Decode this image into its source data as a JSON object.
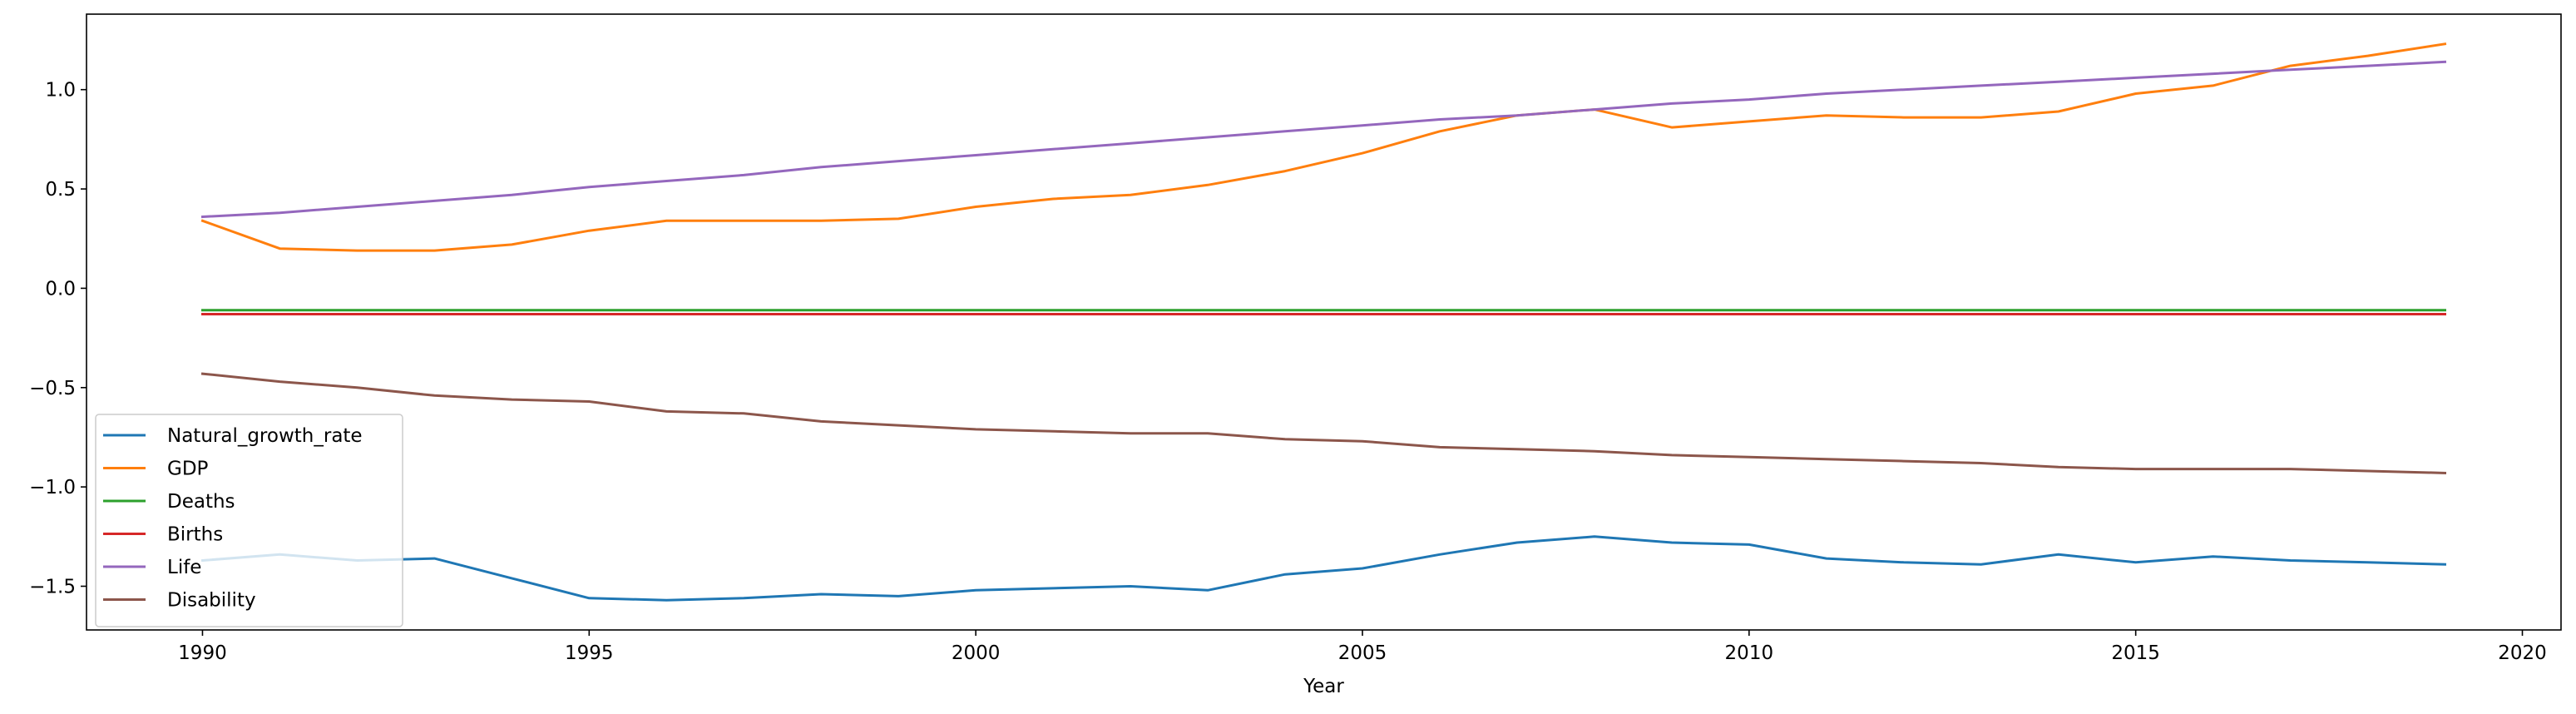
{
  "chart_data": {
    "type": "line",
    "title": "",
    "xlabel": "Year",
    "ylabel": "",
    "xlim": [
      1988.5,
      2020.5
    ],
    "ylim": [
      -1.72,
      1.38
    ],
    "xticks": [
      1990,
      1995,
      2000,
      2005,
      2010,
      2015,
      2020
    ],
    "yticks": [
      -1.5,
      -1.0,
      -0.5,
      0.0,
      0.5,
      1.0
    ],
    "ytick_labels": [
      "−1.5",
      "−1.0",
      "−0.5",
      "0.0",
      "0.5",
      "1.0"
    ],
    "grid": false,
    "legend_position": "lower-left",
    "x": [
      1990,
      1991,
      1992,
      1993,
      1994,
      1995,
      1996,
      1997,
      1998,
      1999,
      2000,
      2001,
      2002,
      2003,
      2004,
      2005,
      2006,
      2007,
      2008,
      2009,
      2010,
      2011,
      2012,
      2013,
      2014,
      2015,
      2016,
      2017,
      2018,
      2019
    ],
    "series": [
      {
        "name": "Natural_growth_rate",
        "color": "#1f77b4",
        "values": [
          -1.37,
          -1.34,
          -1.37,
          -1.36,
          -1.46,
          -1.56,
          -1.57,
          -1.56,
          -1.54,
          -1.55,
          -1.52,
          -1.51,
          -1.5,
          -1.52,
          -1.44,
          -1.41,
          -1.34,
          -1.28,
          -1.25,
          -1.28,
          -1.29,
          -1.36,
          -1.38,
          -1.39,
          -1.34,
          -1.38,
          -1.35,
          -1.37,
          -1.38,
          -1.39
        ]
      },
      {
        "name": "GDP",
        "color": "#ff7f0e",
        "values": [
          0.34,
          0.2,
          0.19,
          0.19,
          0.22,
          0.29,
          0.34,
          0.34,
          0.34,
          0.35,
          0.41,
          0.45,
          0.47,
          0.52,
          0.59,
          0.68,
          0.79,
          0.87,
          0.9,
          0.81,
          0.84,
          0.87,
          0.86,
          0.86,
          0.89,
          0.98,
          1.02,
          1.12,
          1.17,
          1.23
        ]
      },
      {
        "name": "Deaths",
        "color": "#2ca02c",
        "values": [
          -0.11,
          -0.11,
          -0.11,
          -0.11,
          -0.11,
          -0.11,
          -0.11,
          -0.11,
          -0.11,
          -0.11,
          -0.11,
          -0.11,
          -0.11,
          -0.11,
          -0.11,
          -0.11,
          -0.11,
          -0.11,
          -0.11,
          -0.11,
          -0.11,
          -0.11,
          -0.11,
          -0.11,
          -0.11,
          -0.11,
          -0.11,
          -0.11,
          -0.11,
          -0.11
        ]
      },
      {
        "name": "Births",
        "color": "#d62728",
        "values": [
          -0.13,
          -0.13,
          -0.13,
          -0.13,
          -0.13,
          -0.13,
          -0.13,
          -0.13,
          -0.13,
          -0.13,
          -0.13,
          -0.13,
          -0.13,
          -0.13,
          -0.13,
          -0.13,
          -0.13,
          -0.13,
          -0.13,
          -0.13,
          -0.13,
          -0.13,
          -0.13,
          -0.13,
          -0.13,
          -0.13,
          -0.13,
          -0.13,
          -0.13,
          -0.13
        ]
      },
      {
        "name": "Life",
        "color": "#9467bd",
        "values": [
          0.36,
          0.38,
          0.41,
          0.44,
          0.47,
          0.51,
          0.54,
          0.57,
          0.61,
          0.64,
          0.67,
          0.7,
          0.73,
          0.76,
          0.79,
          0.82,
          0.85,
          0.87,
          0.9,
          0.93,
          0.95,
          0.98,
          1.0,
          1.02,
          1.04,
          1.06,
          1.08,
          1.1,
          1.12,
          1.14
        ]
      },
      {
        "name": "Disability",
        "color": "#8c564b",
        "values": [
          -0.43,
          -0.47,
          -0.5,
          -0.54,
          -0.56,
          -0.57,
          -0.62,
          -0.63,
          -0.67,
          -0.69,
          -0.71,
          -0.72,
          -0.73,
          -0.73,
          -0.76,
          -0.77,
          -0.8,
          -0.81,
          -0.82,
          -0.84,
          -0.85,
          -0.86,
          -0.87,
          -0.88,
          -0.9,
          -0.91,
          -0.91,
          -0.91,
          -0.92,
          -0.93
        ]
      }
    ]
  }
}
